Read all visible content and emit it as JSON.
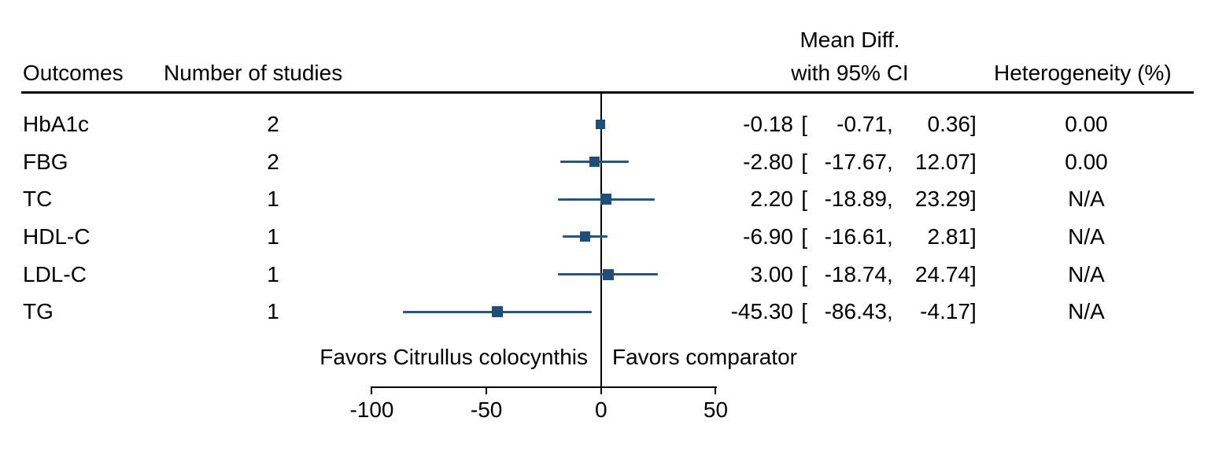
{
  "header": {
    "outcomes": "Outcomes",
    "n_studies": "Number of studies",
    "mean_diff_line1": "Mean Diff.",
    "mean_diff_line2": "with 95% CI",
    "heterogeneity": "Heterogeneity (%)"
  },
  "chart_data": {
    "type": "forest",
    "x_ticks": [
      -100,
      -50,
      0,
      50
    ],
    "x_range": [
      -100,
      50
    ],
    "zero_reference": 0,
    "favors_left": "Favors Citrullus colocynthis",
    "favors_right": "Favors comparator",
    "rows": [
      {
        "outcome": "HbA1c",
        "n_studies": "2",
        "est": -0.18,
        "ci_low": -0.71,
        "ci_high": 0.36,
        "heterogeneity": "0.00",
        "marker_size": 12
      },
      {
        "outcome": "FBG",
        "n_studies": "2",
        "est": -2.8,
        "ci_low": -17.67,
        "ci_high": 12.07,
        "heterogeneity": "0.00",
        "marker_size": 13
      },
      {
        "outcome": "TC",
        "n_studies": "1",
        "est": 2.2,
        "ci_low": -18.89,
        "ci_high": 23.29,
        "heterogeneity": "N/A",
        "marker_size": 14
      },
      {
        "outcome": "HDL-C",
        "n_studies": "1",
        "est": -6.9,
        "ci_low": -16.61,
        "ci_high": 2.81,
        "heterogeneity": "N/A",
        "marker_size": 13
      },
      {
        "outcome": "LDL-C",
        "n_studies": "1",
        "est": 3.0,
        "ci_low": -18.74,
        "ci_high": 24.74,
        "heterogeneity": "N/A",
        "marker_size": 14
      },
      {
        "outcome": "TG",
        "n_studies": "1",
        "est": -45.3,
        "ci_low": -86.43,
        "ci_high": -4.17,
        "heterogeneity": "N/A",
        "marker_size": 14
      }
    ],
    "colors": {
      "marker": "#1f4e79",
      "ci_line": "#24567f",
      "axis": "#000000"
    }
  }
}
